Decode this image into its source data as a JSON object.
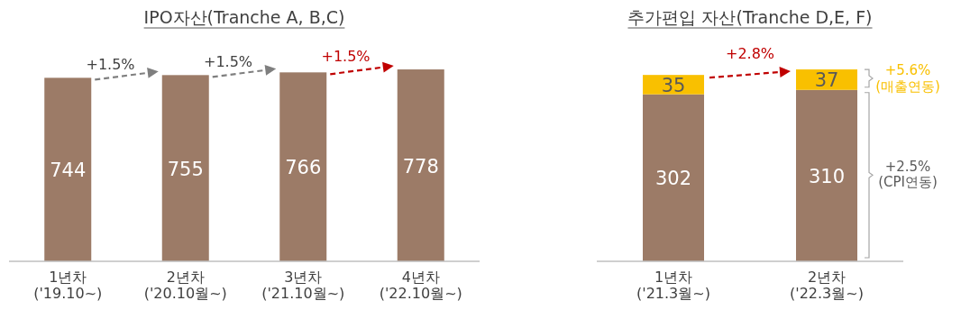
{
  "chart_data": [
    {
      "type": "bar",
      "title": "IPO자산(Tranche A, B,C)",
      "categories": [
        "1년차\n('19.10~)",
        "2년차\n('20.10월~)",
        "3년차\n('21.10월~)",
        "4년차\n('22.10월~)"
      ],
      "series": [
        {
          "color": "#9c7b67",
          "values": [
            744,
            755,
            766,
            778
          ]
        }
      ],
      "data_labels": true,
      "annotations": [
        "+1.5%",
        "+1.5%",
        "+1.5%"
      ]
    },
    {
      "type": "bar",
      "title": "추가편입 자산(Tranche D,E, F)",
      "categories": [
        "1년차\n('21.3월~)",
        "2년차\n('22.3월~)"
      ],
      "series": [
        {
          "color": "#9c7b67",
          "values": [
            302,
            310
          ]
        },
        {
          "color": "#f9c000",
          "values": [
            35,
            37
          ]
        }
      ],
      "stacked": true,
      "data_labels": true,
      "annotations": [
        "+2.8%",
        "+5.6%\n(매출연동)",
        "+2.5%\n(CPI연동)"
      ]
    }
  ]
}
